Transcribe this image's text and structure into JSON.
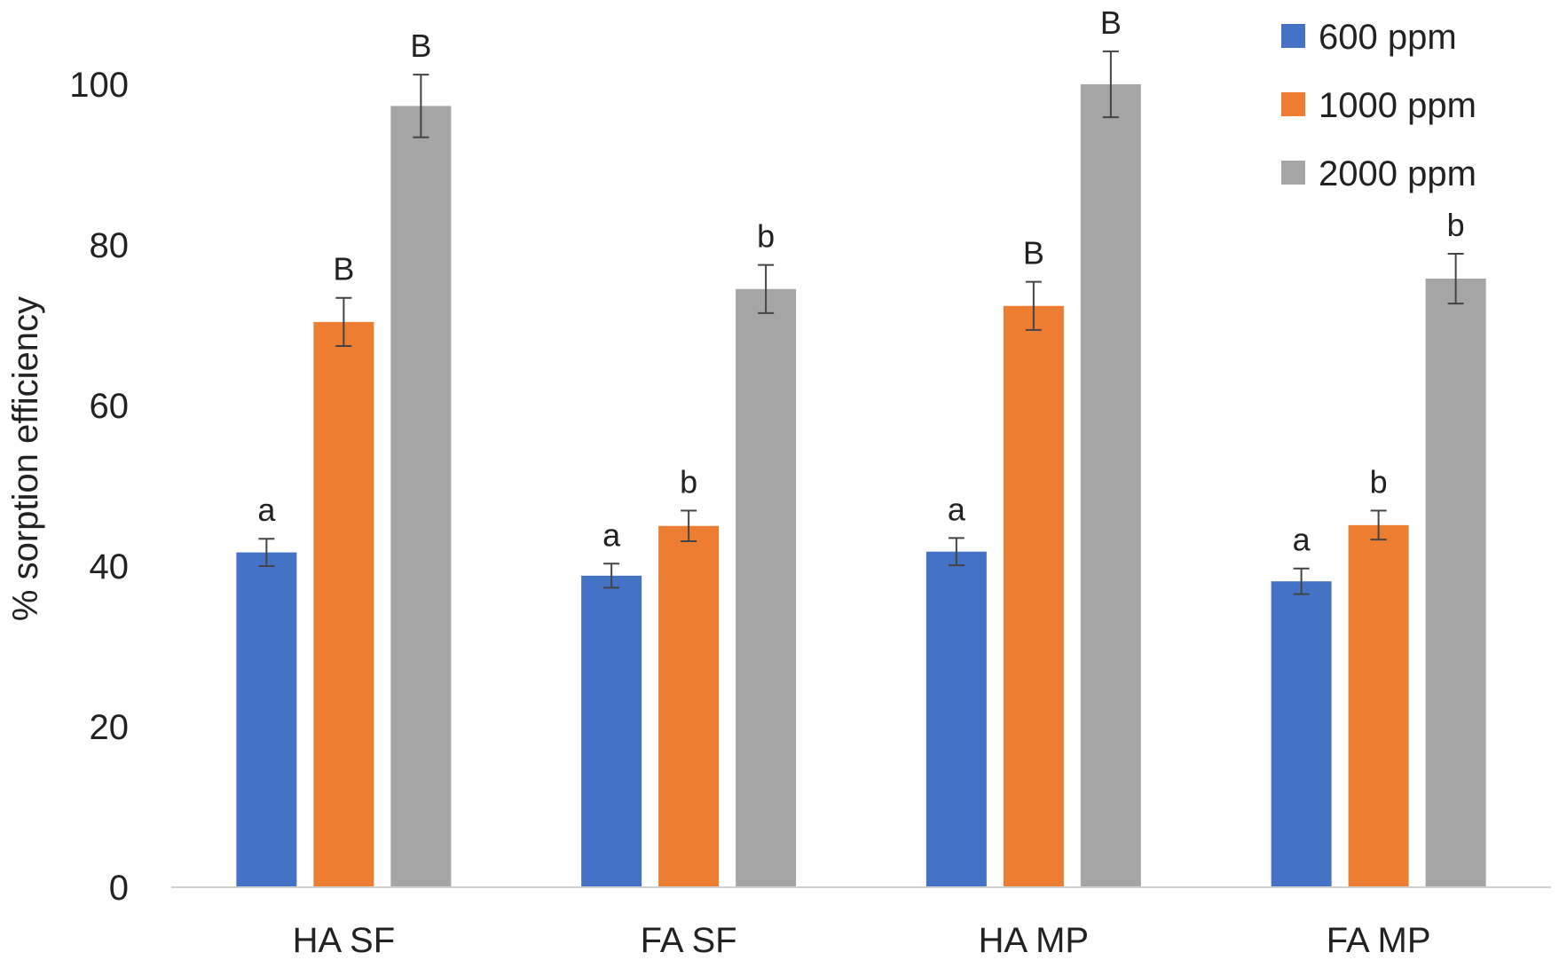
{
  "chart_data": {
    "type": "bar",
    "title": "",
    "xlabel": "",
    "ylabel": "% sorption efficiency",
    "ylim": [
      0,
      100
    ],
    "yticks": [
      0,
      20,
      40,
      60,
      80,
      100
    ],
    "grid": false,
    "legend_position": "top-right",
    "categories": [
      "HA SF",
      "FA SF",
      "HA MP",
      "FA MP"
    ],
    "series": [
      {
        "name": "600 ppm",
        "color": "#4472c4",
        "values": [
          41.7,
          38.8,
          41.8,
          38.1
        ],
        "errors": [
          1.7,
          1.5,
          1.7,
          1.6
        ],
        "letters": [
          "a",
          "a",
          "a",
          "a"
        ]
      },
      {
        "name": "1000 ppm",
        "color": "#ed7d31",
        "values": [
          70.4,
          45.0,
          72.4,
          45.1
        ],
        "errors": [
          3.0,
          1.9,
          3.0,
          1.8
        ],
        "letters": [
          "B",
          "b",
          "B",
          "b"
        ]
      },
      {
        "name": "2000 ppm",
        "color": "#a5a5a5",
        "values": [
          97.3,
          74.5,
          100.0,
          75.8
        ],
        "errors": [
          3.9,
          3.0,
          4.1,
          3.1
        ],
        "letters": [
          "B",
          "b",
          "B",
          "b"
        ]
      }
    ]
  }
}
